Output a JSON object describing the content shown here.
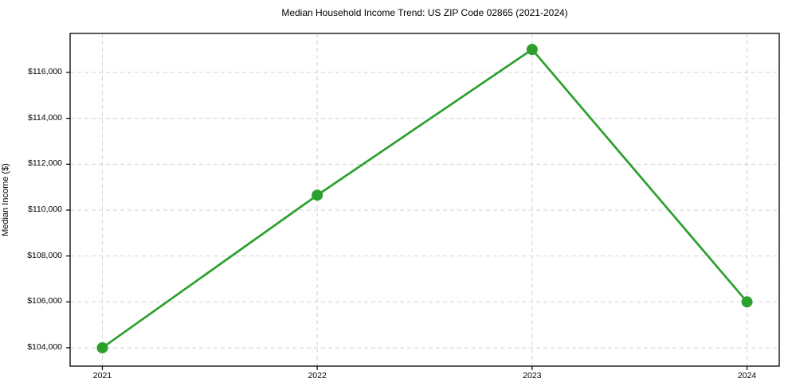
{
  "chart_data": {
    "type": "line",
    "title": "Median Household Income Trend: US ZIP Code 02865 (2021-2024)",
    "ylabel": "Median Income ($)",
    "xlabel": "",
    "x": [
      2021,
      2022,
      2023,
      2024
    ],
    "x_tick_labels": [
      "2021",
      "2022",
      "2023",
      "2024"
    ],
    "series": [
      {
        "name": "Median Household Income",
        "values": [
          104000,
          110650,
          117000,
          106000
        ]
      }
    ],
    "y_ticks": [
      104000,
      106000,
      108000,
      110000,
      112000,
      114000,
      116000
    ],
    "y_tick_labels": [
      "$104,000",
      "$106,000",
      "$108,000",
      "$110,000",
      "$112,000",
      "$114,000",
      "$116,000"
    ],
    "xlim": [
      2020.85,
      2024.15
    ],
    "ylim": [
      103200,
      117700
    ],
    "grid": true,
    "legend": "none",
    "line_color": "#2ca02c",
    "marker_color": "#2ca02c",
    "grid_color": "#d2d2d2",
    "spine_color": "#000000",
    "background": "#ffffff"
  }
}
